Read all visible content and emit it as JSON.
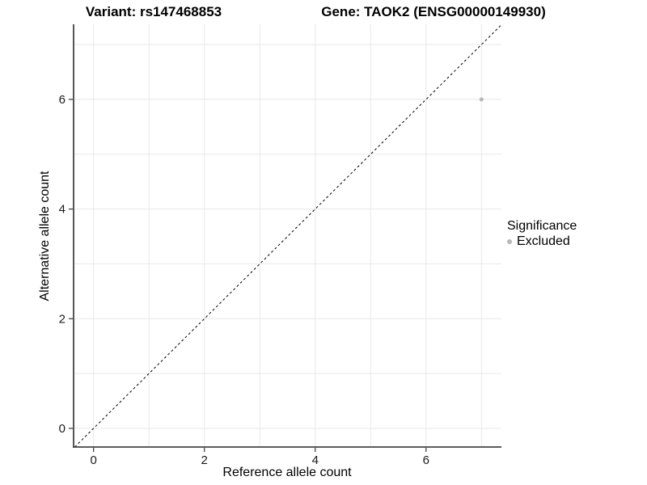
{
  "chart_data": {
    "type": "scatter",
    "title_left": "Variant: rs147468853",
    "title_right": "Gene: TAOK2 (ENSG00000149930)",
    "xlabel": "Reference allele count",
    "ylabel": "Alternative allele count",
    "xlim": [
      -0.36,
      7.36
    ],
    "ylim": [
      -0.34,
      7.37
    ],
    "x_ticks": [
      0,
      2,
      4,
      6
    ],
    "y_ticks": [
      0,
      2,
      4,
      6
    ],
    "grid_ticks": [
      0,
      1,
      2,
      3,
      4,
      5,
      6,
      7
    ],
    "grid": true,
    "points": [
      {
        "x": 7,
        "y": 6,
        "significance": "Excluded"
      }
    ],
    "identity_line": {
      "slope": 1,
      "intercept": 0,
      "style": "dashed",
      "color": "#000000"
    },
    "legend": {
      "title": "Significance",
      "position": "right",
      "entries": [
        {
          "label": "Excluded",
          "color": "#b8b8b8"
        }
      ]
    },
    "colors": {
      "background": "#ffffff",
      "grid": "#e8e8e8",
      "axis_line": "#444444",
      "tick_mark": "#333333",
      "tick_text": "#1a1a1a",
      "point": "#b8b8b8"
    }
  }
}
